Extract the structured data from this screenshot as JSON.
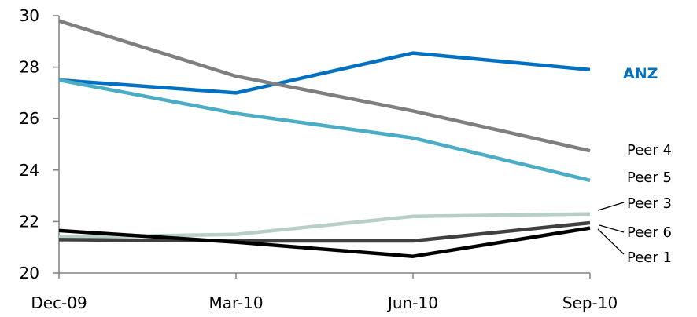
{
  "chart_data": {
    "type": "line",
    "title": "",
    "xlabel": "",
    "ylabel": "",
    "categories": [
      "Dec-09",
      "Mar-10",
      "Jun-10",
      "Sep-10"
    ],
    "ylim": [
      20,
      30
    ],
    "yticks": [
      20,
      22,
      24,
      26,
      28,
      30
    ],
    "grid": false,
    "legend": "direct labels at right end of lines",
    "series": [
      {
        "name": "ANZ",
        "values": [
          27.5,
          27.0,
          28.55,
          27.9
        ],
        "color": "#0070C0"
      },
      {
        "name": "Peer 4",
        "values": [
          29.8,
          27.65,
          26.3,
          24.75
        ],
        "color": "#7F7F7F"
      },
      {
        "name": "Peer 5",
        "values": [
          27.5,
          26.2,
          25.25,
          23.6
        ],
        "color": "#4BACC6"
      },
      {
        "name": "Peer 3",
        "values": [
          21.4,
          21.5,
          22.2,
          22.3
        ],
        "color": "#B7CFC7"
      },
      {
        "name": "Peer 6",
        "values": [
          21.3,
          21.25,
          21.25,
          21.95
        ],
        "color": "#404040"
      },
      {
        "name": "Peer 1",
        "values": [
          21.65,
          21.2,
          20.65,
          21.75
        ],
        "color": "#000000"
      }
    ]
  }
}
